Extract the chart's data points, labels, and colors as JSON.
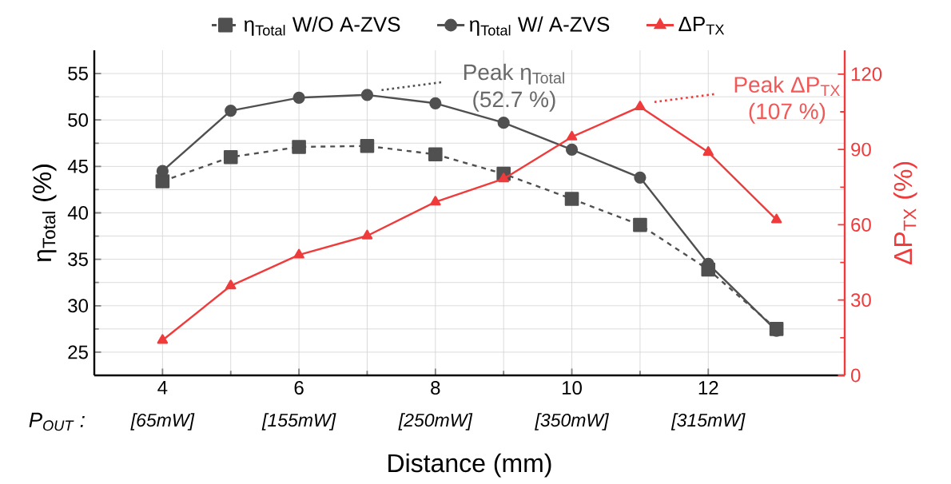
{
  "chart_data": {
    "type": "line",
    "x": [
      4,
      5,
      6,
      7,
      8,
      9,
      10,
      11,
      12,
      13
    ],
    "series": [
      {
        "name": "η$_{Total}$ W/O A-ZVS",
        "color": "#505050",
        "marker": "square",
        "line_style": "dashed",
        "values": [
          43.4,
          46.0,
          47.1,
          47.2,
          46.3,
          44.2,
          41.5,
          38.7,
          33.9,
          27.5
        ]
      },
      {
        "name": "η$_{Total}$ W/ A-ZVS",
        "color": "#505050",
        "marker": "circle",
        "line_style": "solid",
        "values": [
          44.5,
          51.0,
          52.4,
          52.7,
          51.8,
          49.7,
          46.8,
          43.8,
          34.5,
          27.3
        ]
      },
      {
        "name": "ΔP$_{TX}$",
        "color": "#ef3b3b",
        "marker": "triangle",
        "line_style": "solid",
        "axis": "y2",
        "values": [
          14,
          35.7,
          48,
          55.6,
          69.1,
          78.3,
          95,
          107,
          88.9,
          62
        ]
      }
    ],
    "xlim": [
      3,
      14
    ],
    "xticks": [
      4,
      6,
      8,
      10,
      12
    ],
    "ylim": [
      22.5,
      57.5
    ],
    "yticks": [
      25,
      30,
      35,
      40,
      45,
      50,
      55
    ],
    "y2lim": [
      0,
      129.5
    ],
    "y2ticks": [
      0,
      30,
      60,
      90,
      120
    ],
    "xlabel": "Distance (mm)",
    "ylabel": "η$_{Total}$ (%)",
    "y2label": "ΔP$_{TX}$ (%)",
    "grid": true,
    "legend": "top",
    "annotations": [
      "Peak η$_{Total}$",
      "(52.7 %)",
      "Peak ΔP$_{TX}$",
      "(107 %)",
      "*P*$_{OUT}$ :",
      "[65mW]",
      "[155mW]",
      "[250mW]",
      "[350mW]",
      "[315mW]"
    ]
  }
}
